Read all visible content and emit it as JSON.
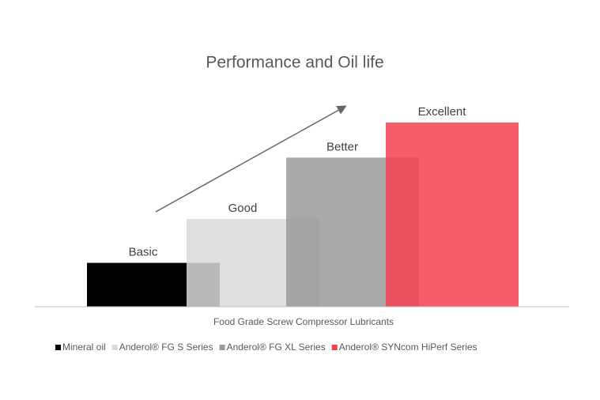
{
  "chart_data": {
    "type": "bar",
    "title": "Performance and Oil life",
    "categories": [
      "Food Grade Screw Compressor Lubricants"
    ],
    "series": [
      {
        "name": "Mineral oil",
        "color": "#000000",
        "values": [
          1
        ],
        "value_labels": [
          "Basic"
        ]
      },
      {
        "name": "Anderol® FG S Series",
        "color": "#d9d9d9",
        "values": [
          2
        ],
        "value_labels": [
          "Good"
        ]
      },
      {
        "name": "Anderol® FG XL Series",
        "color": "#9a9a9a",
        "values": [
          3.4
        ],
        "value_labels": [
          "Better"
        ]
      },
      {
        "name": "Anderol® SYNcom HiPerf Series",
        "color": "#f4404f",
        "values": [
          4.2
        ],
        "value_labels": [
          "Excellent"
        ]
      }
    ]
  }
}
